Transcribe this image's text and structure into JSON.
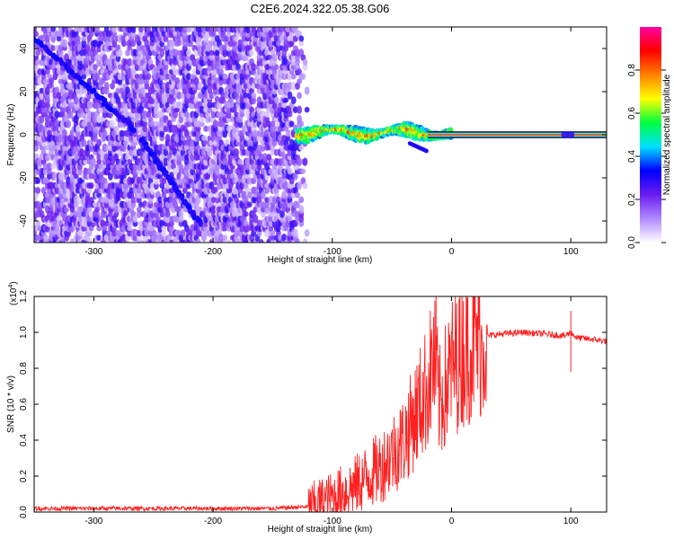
{
  "chart_data": [
    {
      "type": "heatmap",
      "title": "C2E6.2024.322.05.38.G06",
      "xlabel": "Height of straight line (km)",
      "ylabel": "Frequency (Hz)",
      "xlim": [
        -350,
        130
      ],
      "ylim": [
        -50,
        50
      ],
      "xticks": [
        -300,
        -200,
        -100,
        0,
        100
      ],
      "yticks": [
        -40,
        -20,
        0,
        20,
        40
      ],
      "colorbar": {
        "label": "Normalized spectral amplitude",
        "range": [
          0,
          1
        ],
        "ticks": [
          0.0,
          0.2,
          0.4,
          0.6,
          0.8
        ],
        "colors": [
          "#ffffff",
          "#b089ff",
          "#6a1cf0",
          "#0000ff",
          "#00e0ff",
          "#00ff40",
          "#ffff00",
          "#ff8000",
          "#ff0000",
          "#ff00a0"
        ]
      },
      "features": [
        {
          "name": "noise-region",
          "x_range": [
            -350,
            -120
          ],
          "y_range": [
            -50,
            50
          ],
          "amplitude": 0.15
        },
        {
          "name": "echo-trace",
          "x_range": [
            -130,
            0
          ],
          "center_frequency": 1,
          "amplitude": 0.5
        },
        {
          "name": "carrier-line",
          "x_range": [
            0,
            130
          ],
          "frequency": 0,
          "amplitude": 0.95
        },
        {
          "name": "diagonal-streak-upper",
          "from": [
            -350,
            45
          ],
          "to": [
            -265,
            2
          ]
        },
        {
          "name": "diagonal-streak-lower",
          "from": [
            -260,
            -2
          ],
          "to": [
            -210,
            -42
          ]
        }
      ]
    },
    {
      "type": "line",
      "xlabel": "Height of straight line (km)",
      "ylabel": "SNR (10 * v/v)",
      "yscale_label": "(x10",
      "yscale_exp": "4",
      "xlim": [
        -350,
        130
      ],
      "ylim": [
        0,
        1.2
      ],
      "xticks": [
        -300,
        -200,
        -100,
        0,
        100
      ],
      "yticks": [
        "0.0",
        "0.2",
        "0.4",
        "0.6",
        "0.8",
        "1.0",
        "1.2"
      ],
      "series": [
        {
          "name": "SNR",
          "color": "#ff2020",
          "x": [
            -350,
            -250,
            -150,
            -120,
            -100,
            -80,
            -60,
            -40,
            -30,
            -20,
            -15,
            -10,
            -5,
            0,
            5,
            10,
            20,
            30,
            40,
            60,
            80,
            95,
            100,
            105,
            120,
            130
          ],
          "y": [
            0.02,
            0.02,
            0.02,
            0.03,
            0.08,
            0.15,
            0.25,
            0.4,
            0.55,
            0.7,
            0.85,
            0.6,
            0.7,
            0.8,
            0.85,
            0.9,
            0.95,
            0.98,
            0.99,
            1.0,
            0.99,
            0.98,
            1.0,
            0.97,
            0.96,
            0.95
          ]
        }
      ]
    }
  ]
}
